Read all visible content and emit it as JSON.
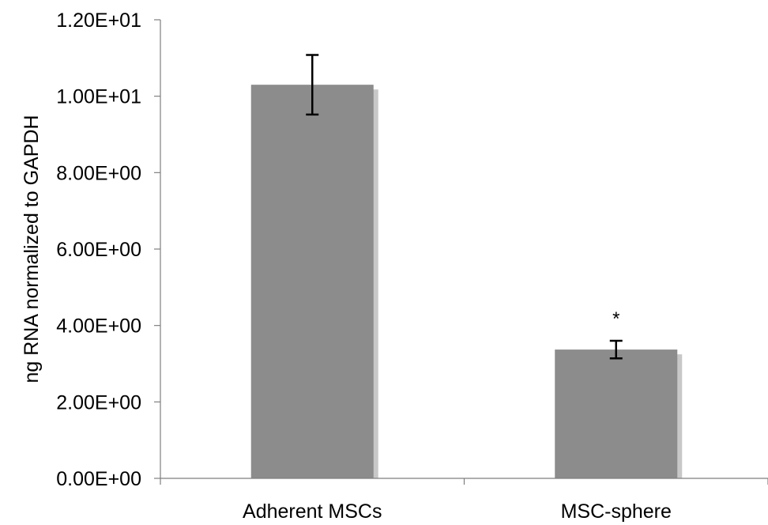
{
  "chart_data": {
    "type": "bar",
    "categories": [
      "Adherent MSCs",
      "MSC-sphere"
    ],
    "series": [
      {
        "values": [
          10.3,
          3.37
        ],
        "error": [
          0.78,
          0.23
        ],
        "color": "#8c8c8c",
        "shadow_color": "#c8c8c8"
      }
    ],
    "ylabel": "ng RNA normalized to GAPDH",
    "xlabel": "",
    "ylim": [
      0,
      12
    ],
    "yticks": [
      0,
      2,
      4,
      6,
      8,
      10,
      12
    ],
    "ytick_labels": [
      "0.00E+00",
      "2.00E+00",
      "4.00E+00",
      "6.00E+00",
      "8.00E+00",
      "1.00E+01",
      "1.20E+01"
    ],
    "annotations": [
      {
        "category": "MSC-sphere",
        "text": "*"
      }
    ],
    "grid": false,
    "legend": "none",
    "axis_color": "#7f7f7f"
  }
}
